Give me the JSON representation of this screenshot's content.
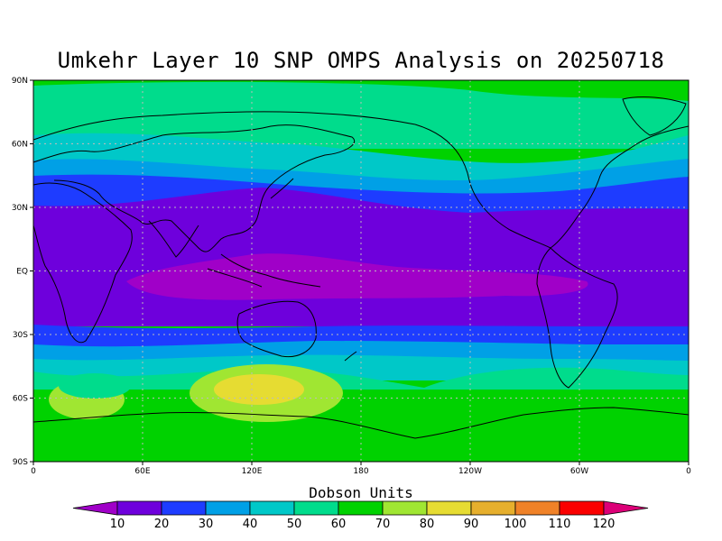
{
  "title": "Umkehr Layer 10 SNP OMPS Analysis on 20250718",
  "y_labels": [
    "90N",
    "60N",
    "30N",
    "EQ",
    "30S",
    "60S",
    "90S"
  ],
  "x_labels": [
    "0",
    "60E",
    "120E",
    "180",
    "120W",
    "60W",
    "0"
  ],
  "colorbar": {
    "title": "Dobson Units",
    "levels": [
      "10",
      "20",
      "30",
      "40",
      "50",
      "60",
      "70",
      "80",
      "90",
      "100",
      "110",
      "120"
    ],
    "colors": [
      "#a000c8",
      "#6e00dc",
      "#1e3cff",
      "#00a0e6",
      "#00c8c8",
      "#00dc8c",
      "#00d200",
      "#a0e632",
      "#e6dc32",
      "#e6af2d",
      "#f08228",
      "#fa0000",
      "#dc0078"
    ]
  }
}
